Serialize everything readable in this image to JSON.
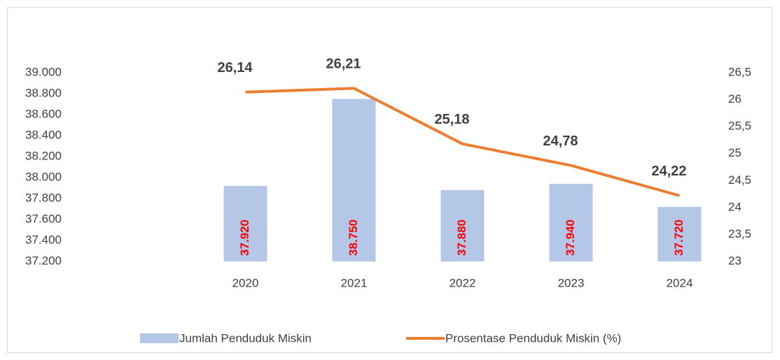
{
  "chart_data": {
    "type": "combo",
    "categories": [
      null,
      "2020",
      "2021",
      "2022",
      "2023",
      "2024"
    ],
    "series": [
      {
        "name": "Jumlah Penduduk Miskin",
        "type": "bar",
        "color": "#b4c7e7",
        "values": [
          null,
          37920,
          38750,
          37880,
          37940,
          37720
        ],
        "value_labels": [
          null,
          "37.920",
          "38.750",
          "37.880",
          "37.940",
          "37.720"
        ],
        "label_color": "#ff0000"
      },
      {
        "name": "Prosentase Penduduk Miskin (%)",
        "type": "line",
        "axis": "y2",
        "color": "#ed7d31",
        "values": [
          null,
          26.14,
          26.21,
          25.18,
          24.78,
          24.22
        ],
        "value_labels": [
          null,
          "26,14",
          "26,21",
          "25,18",
          "24,78",
          "24,22"
        ]
      }
    ],
    "ylim": [
      37200,
      39000
    ],
    "yticks": [
      {
        "value": 37200,
        "label": "37.200"
      },
      {
        "value": 37400,
        "label": "37.400"
      },
      {
        "value": 37600,
        "label": "37.600"
      },
      {
        "value": 37800,
        "label": "37.800"
      },
      {
        "value": 38000,
        "label": "38.000"
      },
      {
        "value": 38200,
        "label": "38.200"
      },
      {
        "value": 38400,
        "label": "38.400"
      },
      {
        "value": 38600,
        "label": "38.600"
      },
      {
        "value": 38800,
        "label": "38.800"
      },
      {
        "value": 39000,
        "label": "39.000"
      }
    ],
    "y2lim": [
      23,
      26.5
    ],
    "y2ticks": [
      23,
      {
        "value": 23.5,
        "label": "23,5"
      },
      24,
      {
        "value": 24.5,
        "label": "24,5"
      },
      25,
      {
        "value": 25.5,
        "label": "25,5"
      },
      26,
      {
        "value": 26.5,
        "label": "26,5"
      }
    ],
    "legend": "bottom"
  }
}
